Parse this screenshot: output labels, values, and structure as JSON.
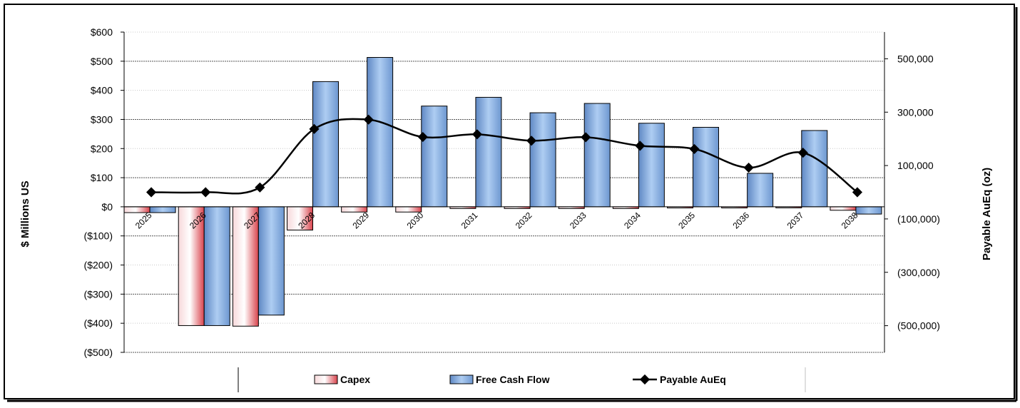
{
  "chart_data": {
    "type": "bar",
    "categories": [
      "2025",
      "2026",
      "2027",
      "2028",
      "2029",
      "2030",
      "2031",
      "2032",
      "2033",
      "2034",
      "2035",
      "2036",
      "2037",
      "2038"
    ],
    "series": [
      {
        "name": "Capex",
        "axis": "left",
        "kind": "bar",
        "values": [
          -20,
          -408,
          -410,
          -80,
          -18,
          -18,
          -6,
          -6,
          -6,
          -6,
          -4,
          -4,
          -2,
          -12
        ]
      },
      {
        "name": "Free Cash Flow",
        "axis": "left",
        "kind": "bar",
        "values": [
          -20,
          -408,
          -372,
          430,
          513,
          346,
          376,
          323,
          355,
          287,
          273,
          115,
          262,
          -25
        ]
      },
      {
        "name": "Payable AuEq",
        "axis": "right",
        "kind": "line",
        "values": [
          0,
          0,
          18000,
          237000,
          272000,
          207000,
          217000,
          193000,
          206000,
          174000,
          162000,
          92000,
          148000,
          0
        ]
      }
    ],
    "ylabel": "$ Millions US",
    "y2label": "Payable AuEq (oz)",
    "ylim": [
      -500,
      600
    ],
    "y2lim": [
      -600000,
      600000
    ],
    "yticks": [
      "$600",
      "$500",
      "$400",
      "$300",
      "$200",
      "$100",
      "$0",
      "($100)",
      "($200)",
      "($300)",
      "($400)",
      "($500)"
    ],
    "y2ticks": [
      "500,000",
      "300,000",
      "100,000",
      "(100,000)",
      "(300,000)",
      "(500,000)"
    ],
    "grid": true,
    "legend_position": "bottom",
    "colors": {
      "capex": "#e8747c",
      "fcf": "#8fb6e6",
      "line": "#000000",
      "frame": "#000000"
    }
  }
}
